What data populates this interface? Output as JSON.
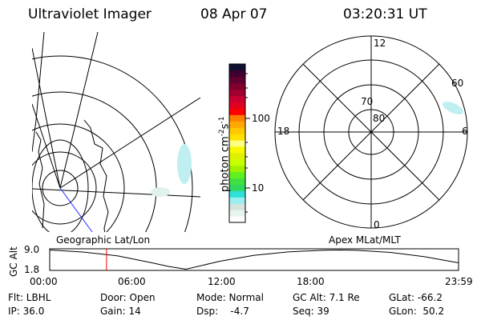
{
  "header": {
    "instrument": "Ultraviolet Imager",
    "date": "08 Apr 07",
    "time": "03:20:31 UT"
  },
  "colorbar": {
    "label": "photon cm",
    "label_exp1": "-2",
    "label_mid": "s",
    "label_exp2": "-1",
    "ticks": [
      "100",
      "10"
    ],
    "colors": [
      "#ffffff",
      "#e8f4ec",
      "#d4e4e0",
      "#99eef0",
      "#2ee0d8",
      "#30d860",
      "#40e040",
      "#60f020",
      "#a0f000",
      "#c8ff00",
      "#e0f000",
      "#f8f800",
      "#ffff80",
      "#ffe000",
      "#ffc800",
      "#ffa800",
      "#ff8000",
      "#ff0000",
      "#e00020",
      "#c80030",
      "#a00030",
      "#800030",
      "#600030",
      "#400030",
      "#101030"
    ]
  },
  "polar": {
    "ring_labels": [
      "80",
      "70",
      "60"
    ],
    "mlt_labels": [
      "12",
      "18",
      "6",
      "0"
    ]
  },
  "timeline": {
    "left_label": "Geographic Lat/Lon",
    "right_label": "Apex MLat/MLT",
    "ylabel": "GC Alt",
    "current_time_marker": "03:20",
    "marker_color": "#ff0000"
  },
  "chart_data": {
    "type": "line",
    "ylabel": "GC Alt",
    "y_ticks": [
      "9.0",
      "1.8"
    ],
    "x_ticks": [
      "00:00",
      "06:00",
      "12:00",
      "18:00",
      "23:59"
    ],
    "ylim": [
      1.8,
      9.0
    ],
    "x_hours": [
      0,
      2,
      4,
      6,
      7,
      8,
      10,
      12,
      14,
      16,
      17,
      18,
      20,
      22,
      24
    ],
    "values": [
      9.0,
      8.2,
      6.8,
      4.2,
      2.8,
      1.8,
      4.8,
      7.0,
      8.3,
      8.9,
      9.0,
      8.9,
      8.1,
      6.5,
      4.2
    ]
  },
  "status": {
    "flt": "Flt: LBHL",
    "ip": "IP: 36.0",
    "door": "Door: Open",
    "gain": "Gain: 14",
    "mode": "Mode: Normal",
    "dsp": "Dsp:    -4.7",
    "gcalt": "GC Alt: 7.1 Re",
    "seq": "Seq: 39",
    "glat": "GLat: -66.2",
    "glon": "GLon:  50.2"
  }
}
